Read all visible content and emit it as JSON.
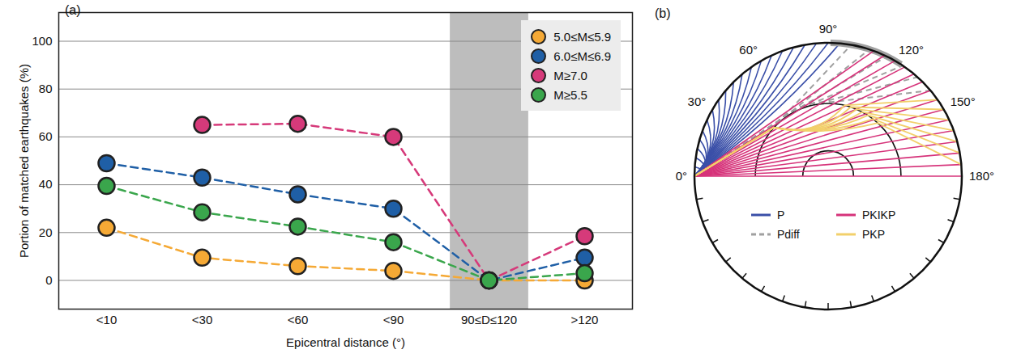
{
  "chart_data": {
    "type": "line",
    "title": "(a)",
    "x_label": "Epicentral distance (°)",
    "y_label": "Portion of matched earthquakes (%)",
    "categories": [
      "<10",
      "<30",
      "<60",
      "<90",
      "90≤D≤120",
      ">120"
    ],
    "series": [
      {
        "name": "5.0≤M≤5.9",
        "color": "#f5a935",
        "values": [
          22,
          9.5,
          6,
          4,
          0,
          0
        ]
      },
      {
        "name": "6.0≤M≤6.9",
        "color": "#1f5fa6",
        "values": [
          49,
          43,
          36,
          30,
          0,
          9.5
        ]
      },
      {
        "name": "M≥7.0",
        "color": "#d63a7a",
        "values": [
          null,
          65,
          65.5,
          60,
          0,
          18.5
        ]
      },
      {
        "name": "M≥5.5",
        "color": "#3aa64c",
        "values": [
          39.5,
          28.5,
          22.5,
          16,
          0,
          3
        ]
      }
    ],
    "ylim": [
      -12,
      112
    ],
    "yticks": [
      0,
      20,
      40,
      60,
      80,
      100
    ],
    "grid": true,
    "legend": "top-right",
    "marker": "circle",
    "line_style": "dashed"
  },
  "diagram": {
    "label": "(b)",
    "angle_labels": [
      {
        "value": 0,
        "label": "0°"
      },
      {
        "value": 30,
        "label": "30°"
      },
      {
        "value": 60,
        "label": "60°"
      },
      {
        "value": 90,
        "label": "90°"
      },
      {
        "value": 120,
        "label": "120°"
      },
      {
        "value": 150,
        "label": "150°"
      },
      {
        "value": 180,
        "label": "180°"
      }
    ],
    "legend": [
      {
        "name": "P",
        "color": "#3a4fa8",
        "line_style": "solid"
      },
      {
        "name": "Pdiff",
        "color": "#a0a0a0",
        "line_style": "dashed"
      },
      {
        "name": "PKIKP",
        "color": "#d6337a",
        "line_style": "solid"
      },
      {
        "name": "PKP",
        "color": "#f2d06b",
        "line_style": "solid"
      }
    ]
  }
}
